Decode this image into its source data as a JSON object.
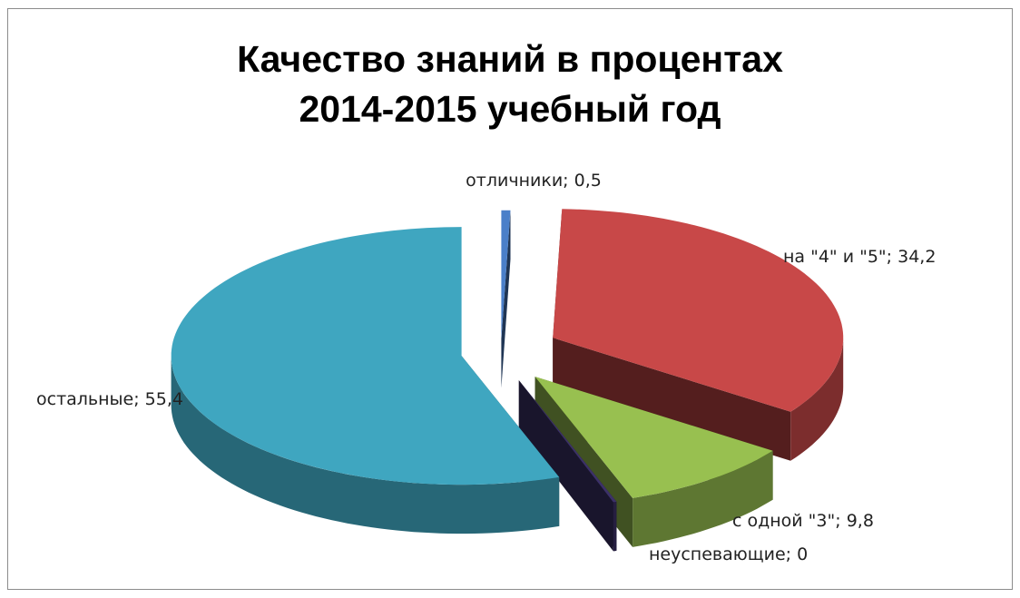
{
  "chart_data": {
    "type": "pie",
    "title": "Качество знаний в процентах 2014-2015 учебный год",
    "title_lines": [
      "Качество знаний в процентах",
      "2014-2015 учебный год"
    ],
    "slices": [
      {
        "label": "отличники",
        "value": 0.5,
        "text": "отличники; 0,5",
        "color": "#4a7fc9"
      },
      {
        "label": "на \"4\" и \"5\"",
        "value": 34.2,
        "text": "на \"4\" и \"5\"; 34,2",
        "color": "#c84848"
      },
      {
        "label": "с одной \"3\"",
        "value": 9.8,
        "text": "с одной \"3\"; 9,8",
        "color": "#98c050"
      },
      {
        "label": "неуспевающие",
        "value": 0,
        "text": "неуспевающие; 0",
        "color": "#3c3168"
      },
      {
        "label": "остальные",
        "value": 55.4,
        "text": "остальные; 55,4",
        "color": "#3fa6c0"
      }
    ],
    "style": "3d-exploded",
    "legend": "none"
  }
}
